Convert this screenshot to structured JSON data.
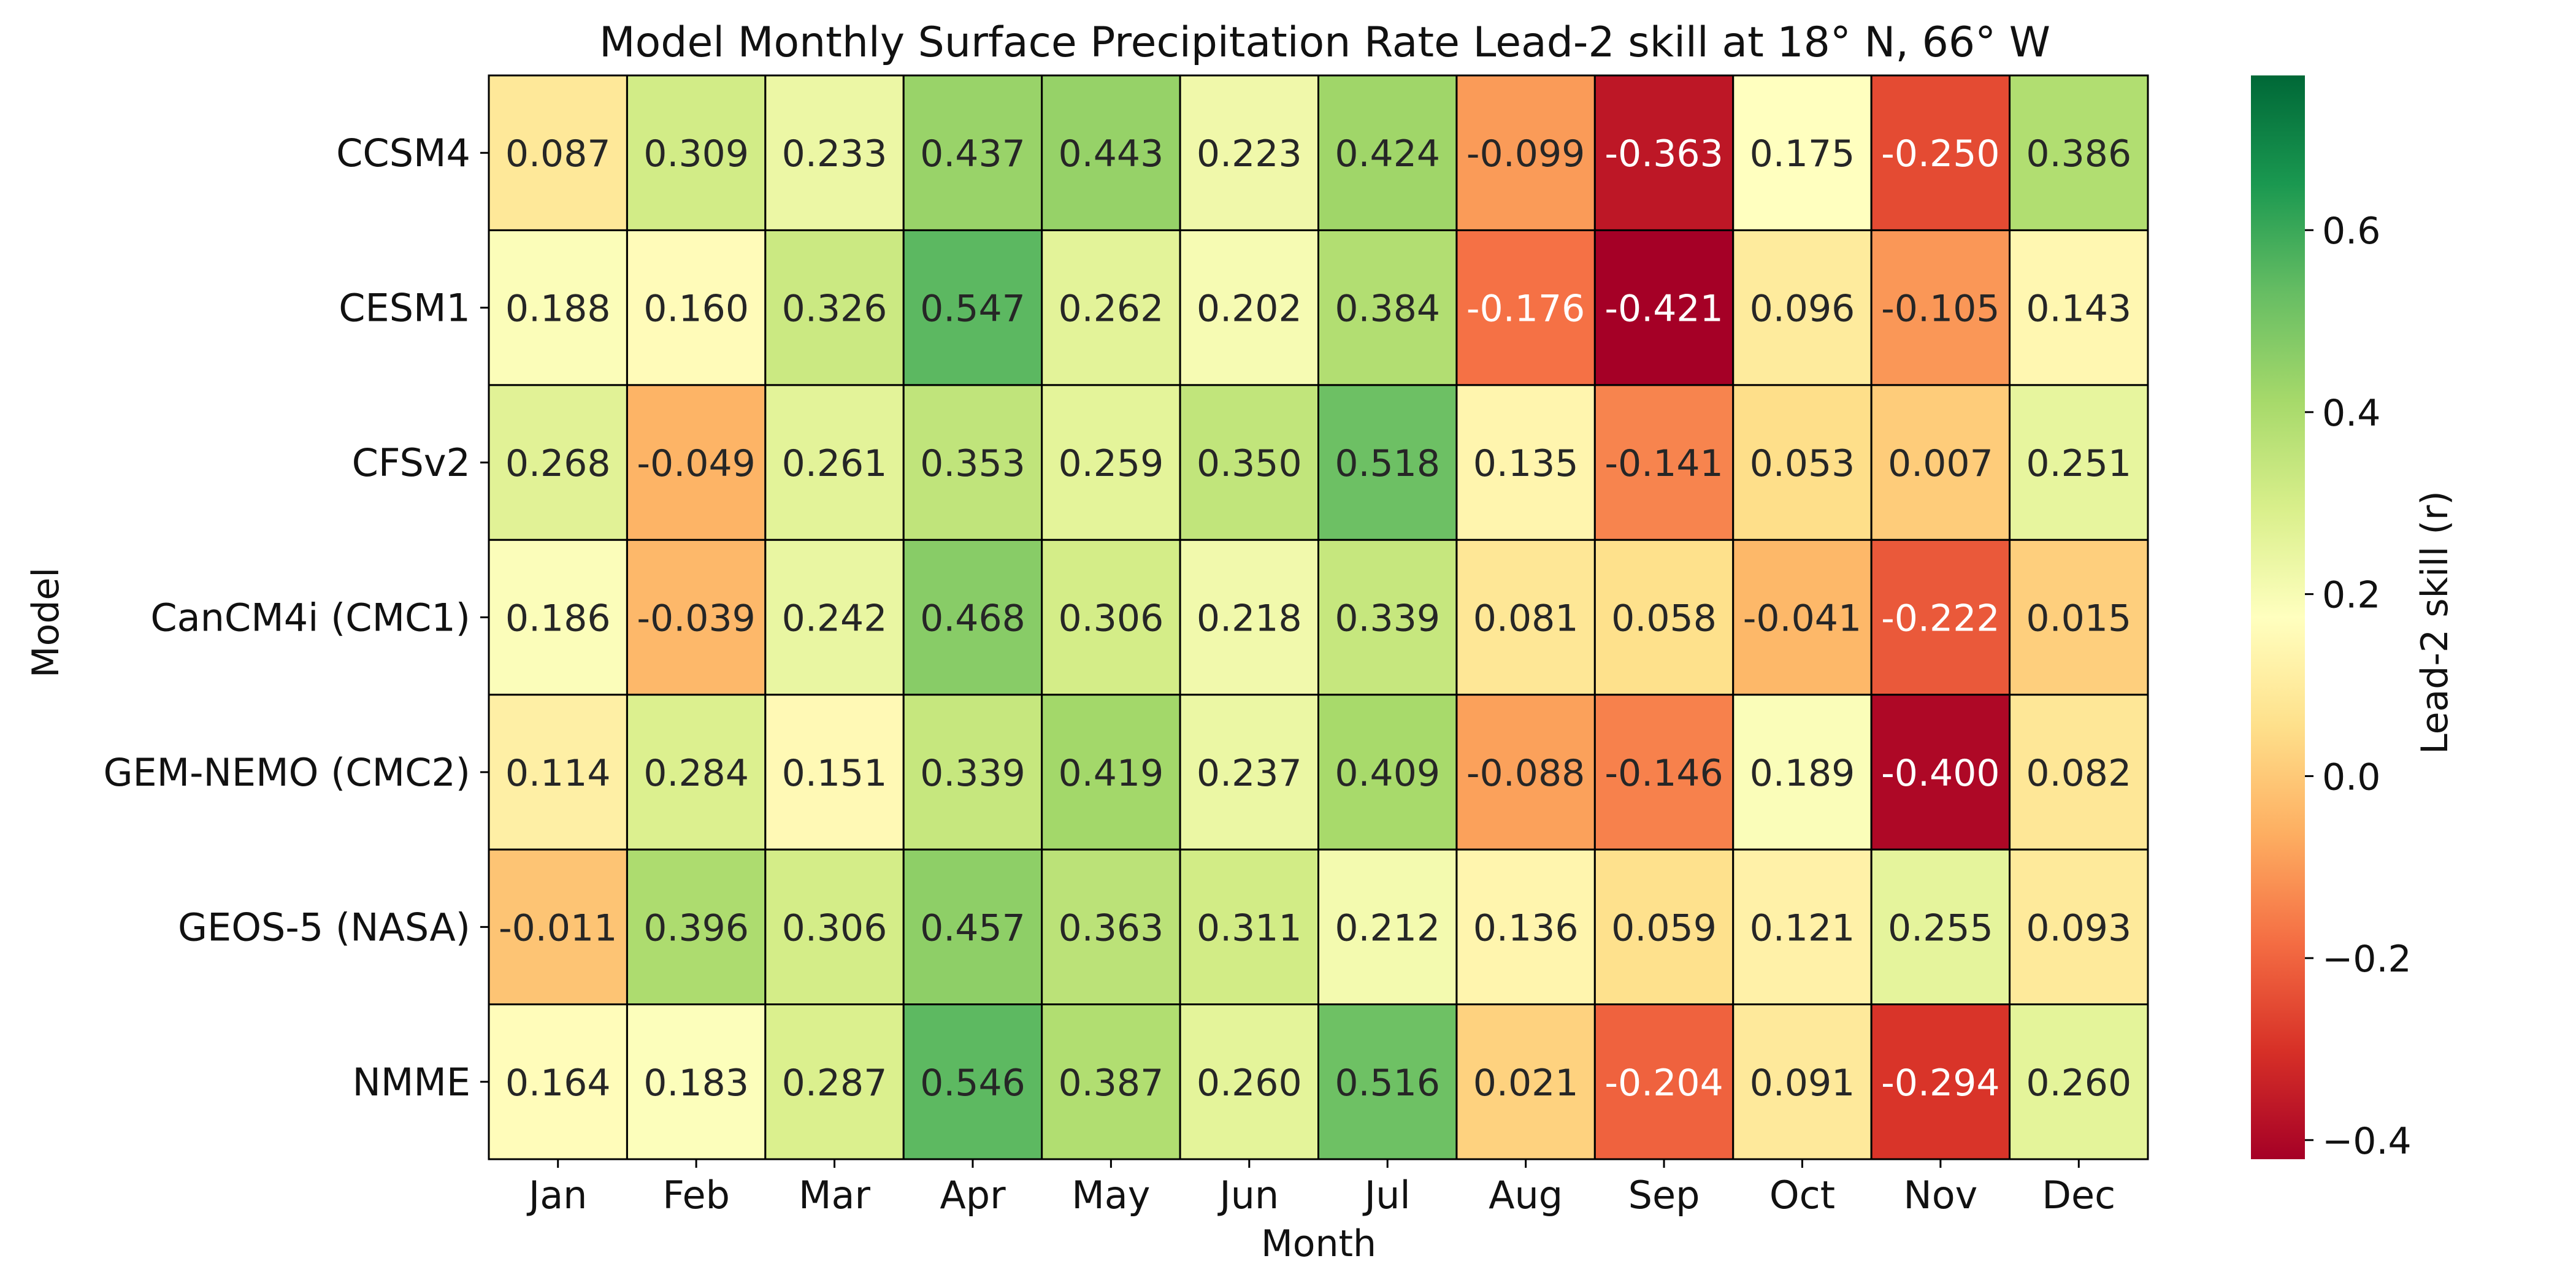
{
  "chart_data": {
    "type": "heatmap",
    "title": "Model Monthly Surface Precipitation Rate Lead-2 skill at 18° N, 66° W",
    "xlabel": "Month",
    "ylabel": "Model",
    "colorbar_label": "Lead-2 skill (r)",
    "colormap": "RdYlGn",
    "vmin": -0.421,
    "vmax": 0.77,
    "colorbar_ticks": [
      -0.4,
      -0.2,
      0.0,
      0.2,
      0.4,
      0.6
    ],
    "colorbar_tick_labels": [
      "−0.4",
      "−0.2",
      "0.0",
      "0.2",
      "0.4",
      "0.6"
    ],
    "months": [
      "Jan",
      "Feb",
      "Mar",
      "Apr",
      "May",
      "Jun",
      "Jul",
      "Aug",
      "Sep",
      "Oct",
      "Nov",
      "Dec"
    ],
    "models": [
      "CCSM4",
      "CESM1",
      "CFSv2",
      "CanCM4i (CMC1)",
      "GEM-NEMO (CMC2)",
      "GEOS-5 (NASA)",
      "NMME"
    ],
    "values": [
      [
        0.087,
        0.309,
        0.233,
        0.437,
        0.443,
        0.223,
        0.424,
        -0.099,
        -0.363,
        0.175,
        -0.25,
        0.386
      ],
      [
        0.188,
        0.16,
        0.326,
        0.547,
        0.262,
        0.202,
        0.384,
        -0.176,
        -0.421,
        0.096,
        -0.105,
        0.143
      ],
      [
        0.268,
        -0.049,
        0.261,
        0.353,
        0.259,
        0.35,
        0.518,
        0.135,
        -0.141,
        0.053,
        0.007,
        0.251
      ],
      [
        0.186,
        -0.039,
        0.242,
        0.468,
        0.306,
        0.218,
        0.339,
        0.081,
        0.058,
        -0.041,
        -0.222,
        0.015
      ],
      [
        0.114,
        0.284,
        0.151,
        0.339,
        0.419,
        0.237,
        0.409,
        -0.088,
        -0.146,
        0.189,
        -0.4,
        0.082
      ],
      [
        -0.011,
        0.396,
        0.306,
        0.457,
        0.363,
        0.311,
        0.212,
        0.136,
        0.059,
        0.121,
        0.255,
        0.093
      ],
      [
        0.164,
        0.183,
        0.287,
        0.546,
        0.387,
        0.26,
        0.516,
        0.021,
        -0.204,
        0.091,
        -0.294,
        0.26
      ]
    ],
    "value_format": "3 decimals"
  }
}
